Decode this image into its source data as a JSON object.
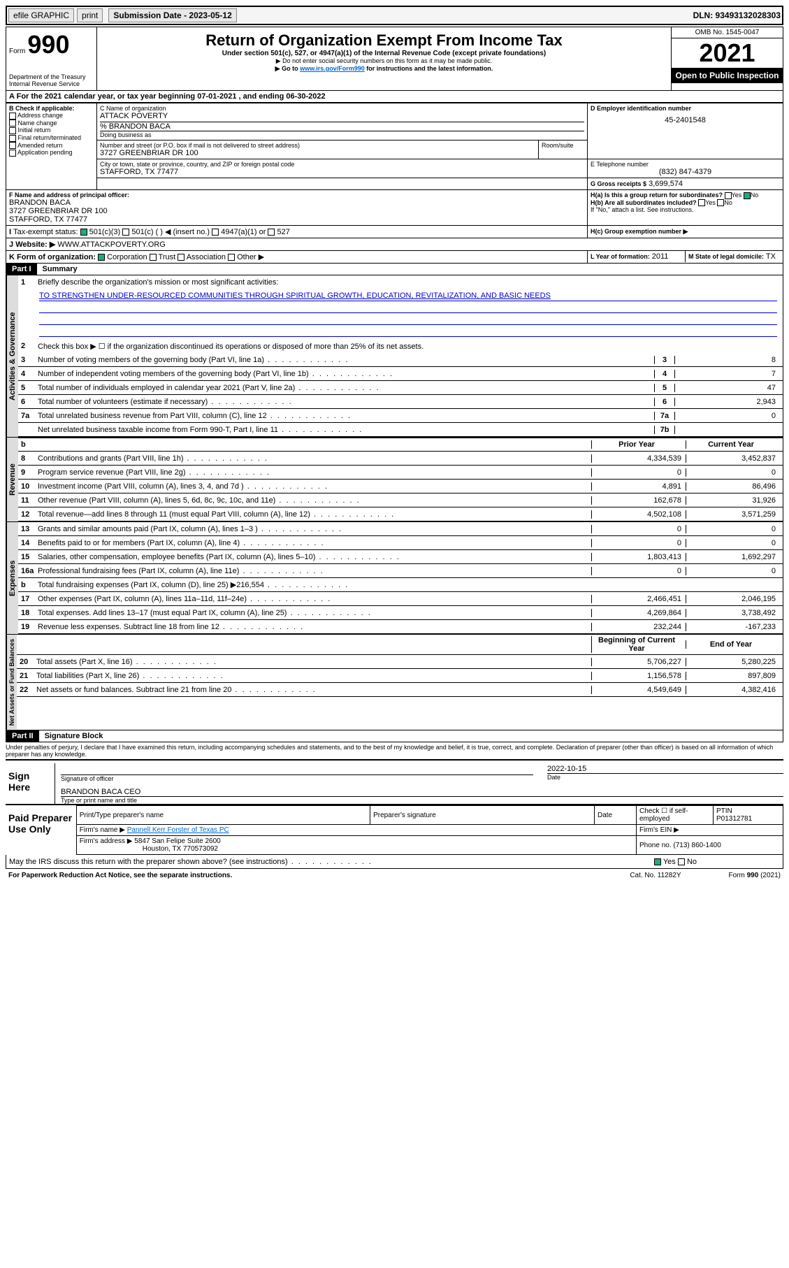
{
  "topbar": {
    "efile": "efile GRAPHIC",
    "print": "print",
    "sub_label": "Submission Date - 2023-05-12",
    "dln": "DLN: 93493132028303"
  },
  "header": {
    "form_word": "Form",
    "form_no": "990",
    "dept": "Department of the Treasury",
    "irs": "Internal Revenue Service",
    "title": "Return of Organization Exempt From Income Tax",
    "sub1": "Under section 501(c), 527, or 4947(a)(1) of the Internal Revenue Code (except private foundations)",
    "sub2": "▶ Do not enter social security numbers on this form as it may be made public.",
    "sub3_pre": "▶ Go to ",
    "sub3_link": "www.irs.gov/Form990",
    "sub3_post": " for instructions and the latest information.",
    "omb": "OMB No. 1545-0047",
    "year": "2021",
    "open": "Open to Public Inspection"
  },
  "A": {
    "text": "For the 2021 calendar year, or tax year beginning 07-01-2021   , and ending 06-30-2022"
  },
  "B": {
    "label": "B Check if applicable:",
    "opts": [
      "Address change",
      "Name change",
      "Initial return",
      "Final return/terminated",
      "Amended return",
      "Application pending"
    ]
  },
  "C": {
    "lbl_name": "C Name of organization",
    "name": "ATTACK POVERTY",
    "care_of": "% BRANDON BACA",
    "dba_lbl": "Doing business as",
    "addr_lbl": "Number and street (or P.O. box if mail is not delivered to street address)",
    "room_lbl": "Room/suite",
    "addr": "3727 GREENBRIAR DR 100",
    "city_lbl": "City or town, state or province, country, and ZIP or foreign postal code",
    "city": "STAFFORD, TX  77477"
  },
  "D": {
    "lbl": "D Employer identification number",
    "val": "45-2401548"
  },
  "E": {
    "lbl": "E Telephone number",
    "val": "(832) 847-4379"
  },
  "G": {
    "lbl": "G Gross receipts $",
    "val": "3,699,574"
  },
  "F": {
    "lbl": "F  Name and address of principal officer:",
    "name": "BRANDON BACA",
    "addr": "3727 GREENBRIAR DR 100",
    "city": "STAFFORD, TX  77477"
  },
  "H": {
    "a": "H(a)  Is this a group return for subordinates?",
    "b": "H(b)  Are all subordinates included?",
    "b_note": "If \"No,\" attach a list. See instructions.",
    "c": "H(c)  Group exemption number ▶",
    "yes": "Yes",
    "no": "No"
  },
  "I": {
    "lbl": "Tax-exempt status:",
    "o1": "501(c)(3)",
    "o2": "501(c) (  ) ◀ (insert no.)",
    "o3": "4947(a)(1) or",
    "o4": "527"
  },
  "J": {
    "lbl": "Website: ▶",
    "val": "WWW.ATTACKPOVERTY.ORG"
  },
  "K": {
    "lbl": "K Form of organization:",
    "o": [
      "Corporation",
      "Trust",
      "Association",
      "Other ▶"
    ]
  },
  "L": {
    "lbl": "L Year of formation:",
    "val": "2011"
  },
  "M": {
    "lbl": "M State of legal domicile:",
    "val": "TX"
  },
  "part1": {
    "hdr": "Part I",
    "title": "Summary",
    "side_a": "Activities & Governance",
    "side_r": "Revenue",
    "side_e": "Expenses",
    "side_n": "Net Assets or Fund Balances",
    "l1": "Briefly describe the organization's mission or most significant activities:",
    "mission": "TO STRENGTHEN UNDER-RESOURCED COMMUNITIES THROUGH SPIRITUAL GROWTH, EDUCATION, REVITALIZATION, AND BASIC NEEDS",
    "l2": "Check this box ▶ ☐  if the organization discontinued its operations or disposed of more than 25% of its net assets.",
    "rows_a": [
      {
        "n": "3",
        "t": "Number of voting members of the governing body (Part VI, line 1a)",
        "k": "3",
        "v": "8"
      },
      {
        "n": "4",
        "t": "Number of independent voting members of the governing body (Part VI, line 1b)",
        "k": "4",
        "v": "7"
      },
      {
        "n": "5",
        "t": "Total number of individuals employed in calendar year 2021 (Part V, line 2a)",
        "k": "5",
        "v": "47"
      },
      {
        "n": "6",
        "t": "Total number of volunteers (estimate if necessary)",
        "k": "6",
        "v": "2,943"
      },
      {
        "n": "7a",
        "t": "Total unrelated business revenue from Part VIII, column (C), line 12",
        "k": "7a",
        "v": "0"
      },
      {
        "n": "",
        "t": "Net unrelated business taxable income from Form 990-T, Part I, line 11",
        "k": "7b",
        "v": ""
      }
    ],
    "col_p": "Prior Year",
    "col_c": "Current Year",
    "rows_r": [
      {
        "n": "8",
        "t": "Contributions and grants (Part VIII, line 1h)",
        "p": "4,334,539",
        "c": "3,452,837"
      },
      {
        "n": "9",
        "t": "Program service revenue (Part VIII, line 2g)",
        "p": "0",
        "c": "0"
      },
      {
        "n": "10",
        "t": "Investment income (Part VIII, column (A), lines 3, 4, and 7d )",
        "p": "4,891",
        "c": "86,496"
      },
      {
        "n": "11",
        "t": "Other revenue (Part VIII, column (A), lines 5, 6d, 8c, 9c, 10c, and 11e)",
        "p": "162,678",
        "c": "31,926"
      },
      {
        "n": "12",
        "t": "Total revenue—add lines 8 through 11 (must equal Part VIII, column (A), line 12)",
        "p": "4,502,108",
        "c": "3,571,259"
      }
    ],
    "rows_e": [
      {
        "n": "13",
        "t": "Grants and similar amounts paid (Part IX, column (A), lines 1–3 )",
        "p": "0",
        "c": "0"
      },
      {
        "n": "14",
        "t": "Benefits paid to or for members (Part IX, column (A), line 4)",
        "p": "0",
        "c": "0"
      },
      {
        "n": "15",
        "t": "Salaries, other compensation, employee benefits (Part IX, column (A), lines 5–10)",
        "p": "1,803,413",
        "c": "1,692,297"
      },
      {
        "n": "16a",
        "t": "Professional fundraising fees (Part IX, column (A), line 11e)",
        "p": "0",
        "c": "0"
      },
      {
        "n": "b",
        "t": "Total fundraising expenses (Part IX, column (D), line 25) ▶216,554",
        "p": "",
        "c": "",
        "gray": true
      },
      {
        "n": "17",
        "t": "Other expenses (Part IX, column (A), lines 11a–11d, 11f–24e)",
        "p": "2,466,451",
        "c": "2,046,195"
      },
      {
        "n": "18",
        "t": "Total expenses. Add lines 13–17 (must equal Part IX, column (A), line 25)",
        "p": "4,269,864",
        "c": "3,738,492"
      },
      {
        "n": "19",
        "t": "Revenue less expenses. Subtract line 18 from line 12",
        "p": "232,244",
        "c": "-167,233"
      }
    ],
    "col_b": "Beginning of Current Year",
    "col_e": "End of Year",
    "rows_n": [
      {
        "n": "20",
        "t": "Total assets (Part X, line 16)",
        "p": "5,706,227",
        "c": "5,280,225"
      },
      {
        "n": "21",
        "t": "Total liabilities (Part X, line 26)",
        "p": "1,156,578",
        "c": "897,809"
      },
      {
        "n": "22",
        "t": "Net assets or fund balances. Subtract line 21 from line 20",
        "p": "4,549,649",
        "c": "4,382,416"
      }
    ]
  },
  "part2": {
    "hdr": "Part II",
    "title": "Signature Block",
    "decl": "Under penalties of perjury, I declare that I have examined this return, including accompanying schedules and statements, and to the best of my knowledge and belief, it is true, correct, and complete. Declaration of preparer (other than officer) is based on all information of which preparer has any knowledge.",
    "sign_here": "Sign Here",
    "sig_officer": "Signature of officer",
    "date_lbl": "Date",
    "sig_date": "2022-10-15",
    "name_title": "BRANDON BACA CEO",
    "name_lbl": "Type or print name and title",
    "paid": "Paid Preparer Use Only",
    "prep_hdrs": [
      "Print/Type preparer's name",
      "Preparer's signature",
      "Date"
    ],
    "check_se": "Check ☐ if self-employed",
    "ptin_lbl": "PTIN",
    "ptin": "P01312781",
    "firm_name_lbl": "Firm's name   ▶",
    "firm_name": "Pannell Kerr Forster of Texas PC",
    "firm_ein_lbl": "Firm's EIN ▶",
    "firm_addr_lbl": "Firm's address ▶",
    "firm_addr1": "5847 San Felipe Suite 2600",
    "firm_addr2": "Houston, TX  770573092",
    "phone_lbl": "Phone no.",
    "phone": "(713) 860-1400",
    "discuss": "May the IRS discuss this return with the preparer shown above? (see instructions)",
    "yes": "Yes",
    "no": "No"
  },
  "footer": {
    "pra": "For Paperwork Reduction Act Notice, see the separate instructions.",
    "cat": "Cat. No. 11282Y",
    "form": "Form 990 (2021)"
  }
}
